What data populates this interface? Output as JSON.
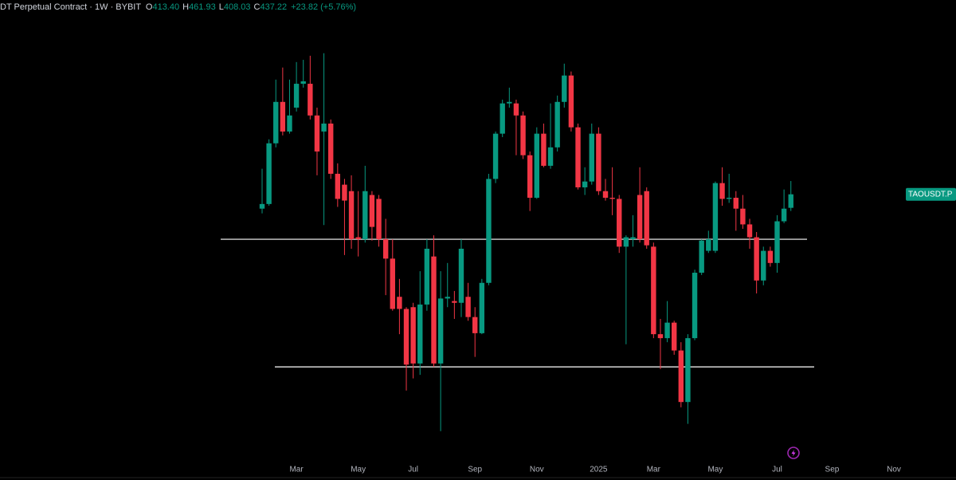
{
  "chart_data": {
    "type": "candlestick",
    "title": "DT Perpetual Contract · 1W · BYBIT",
    "ohlc_letters": [
      "O",
      "H",
      "L",
      "C"
    ],
    "last_labels": [
      "413.40",
      "461.93",
      "408.03",
      "437.22"
    ],
    "change": "+23.82 (+5.76%)",
    "symbol_tag": "TAOUSDT.P",
    "categories": [
      null,
      null,
      null,
      null,
      null,
      "Mar",
      null,
      null,
      null,
      null,
      null,
      null,
      null,
      null,
      "May",
      null,
      null,
      null,
      null,
      null,
      null,
      null,
      "Jul",
      null,
      null,
      null,
      null,
      null,
      null,
      null,
      null,
      "Sep",
      null,
      null,
      null,
      null,
      null,
      null,
      null,
      null,
      "Nov",
      null,
      null,
      null,
      null,
      null,
      null,
      null,
      null,
      "2025",
      null,
      null,
      null,
      null,
      null,
      null,
      null,
      "Mar",
      null,
      null,
      null,
      null,
      null,
      null,
      null,
      null,
      "May",
      null,
      null,
      null,
      null,
      null,
      null,
      null,
      null,
      "Jul",
      null,
      null,
      null,
      null,
      null,
      null,
      null,
      "Sep",
      null,
      null,
      null,
      null,
      null,
      null,
      null,
      null,
      "Nov"
    ],
    "open": [
      412,
      420,
      540,
      641,
      567,
      626,
      691,
      691,
      606,
      567,
      586,
      476,
      455,
      443,
      366,
      363,
      436,
      429,
      363,
      335,
      286,
      272,
      274,
      217,
      277,
      338,
      217,
      284,
      281,
      279,
      286,
      263,
      246,
      303,
      466,
      562,
      637,
      637,
      606,
      514,
      431,
      562,
      492,
      531,
      641,
      715,
      577,
      450,
      461,
      562,
      443,
      431,
      429,
      352,
      363,
      436,
      443,
      352,
      245,
      241,
      257,
      229,
      185,
      241,
      316,
      346,
      346,
      458,
      429,
      431,
      412,
      386,
      366,
      306,
      346,
      329,
      391,
      413.4,
      null,
      null,
      null,
      null,
      null,
      null,
      null,
      null,
      null,
      null,
      null,
      null,
      null,
      null,
      null
    ],
    "high": [
      486,
      549,
      703,
      739,
      703,
      756,
      763,
      776,
      626,
      784,
      596,
      497,
      466,
      473,
      443,
      492,
      443,
      436,
      395,
      363,
      308,
      274,
      279,
      318,
      363,
      369,
      318,
      329,
      293,
      363,
      303,
      274,
      308,
      476,
      567,
      647,
      680,
      647,
      616,
      522,
      577,
      586,
      637,
      658,
      751,
      727,
      586,
      489,
      586,
      577,
      466,
      489,
      436,
      369,
      401,
      489,
      450,
      358,
      261,
      281,
      259,
      237,
      245,
      320,
      363,
      376,
      461,
      489,
      476,
      443,
      436,
      395,
      374,
      352,
      352,
      401,
      446,
      461.93,
      null,
      null,
      null,
      null,
      null,
      null,
      null,
      null,
      null,
      null,
      null,
      null,
      null,
      null,
      null
    ],
    "low": [
      404,
      417,
      531,
      558,
      562,
      616,
      680,
      596,
      473,
      385,
      466,
      415,
      340,
      349,
      338,
      358,
      361,
      352,
      288,
      270,
      245,
      194,
      204,
      207,
      270,
      214,
      164,
      274,
      261,
      263,
      259,
      223,
      245,
      300,
      458,
      554,
      626,
      514,
      506,
      408,
      429,
      489,
      486,
      522,
      626,
      567,
      446,
      436,
      455,
      436,
      426,
      401,
      343,
      235,
      352,
      358,
      349,
      241,
      212,
      237,
      225,
      181,
      169,
      239,
      313,
      343,
      343,
      417,
      422,
      376,
      379,
      349,
      290,
      300,
      324,
      316,
      388,
      408.03,
      null,
      null,
      null,
      null,
      null,
      null,
      null,
      null,
      null,
      null,
      null,
      null,
      null,
      null,
      null
    ],
    "close": [
      420,
      540,
      641,
      567,
      606,
      691,
      698,
      606,
      522,
      586,
      476,
      429,
      426,
      363,
      363,
      443,
      382,
      363,
      335,
      272,
      272,
      216,
      217,
      277,
      349,
      217,
      284,
      286,
      279,
      349,
      263,
      246,
      303,
      466,
      562,
      637,
      641,
      606,
      514,
      431,
      562,
      492,
      531,
      641,
      715,
      577,
      450,
      461,
      562,
      443,
      431,
      429,
      352,
      366,
      366,
      363,
      354,
      245,
      241,
      257,
      229,
      185,
      241,
      316,
      361,
      363,
      458,
      429,
      431,
      412,
      386,
      366,
      306,
      346,
      329,
      391,
      412,
      437.22,
      null,
      null,
      null,
      null,
      null,
      null,
      null,
      null,
      null,
      null,
      null,
      null,
      null,
      null,
      null
    ],
    "up_color": "#089981",
    "down_color": "#f23645",
    "hlines": [
      363,
      214
    ],
    "hline_color": "#ffffff",
    "log_scale": true,
    "ylim": [
      145,
      915
    ]
  }
}
